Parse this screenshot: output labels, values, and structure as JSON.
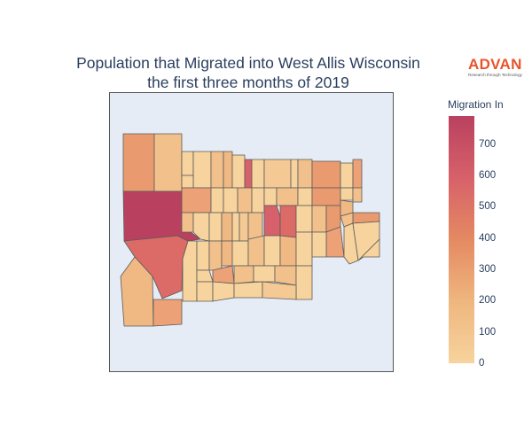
{
  "title": {
    "line1": "Population that Migrated into West Allis Wisconsin",
    "line2": "the first three months of 2019"
  },
  "logo": {
    "word": "ADVAN",
    "tagline": "Research through Technology",
    "color": "#e8542b"
  },
  "colorbar": {
    "title": "Migration In",
    "min": 0,
    "max": 790,
    "ticks": [
      "0",
      "100",
      "200",
      "300",
      "400",
      "500",
      "600",
      "700"
    ],
    "colorscale": [
      "#f7d39d",
      "#efb67f",
      "#e48a62",
      "#d7616a",
      "#b9415f"
    ]
  },
  "map": {
    "background": "#e5ecf6",
    "border_color": "#555555",
    "region_count": 70
  }
}
